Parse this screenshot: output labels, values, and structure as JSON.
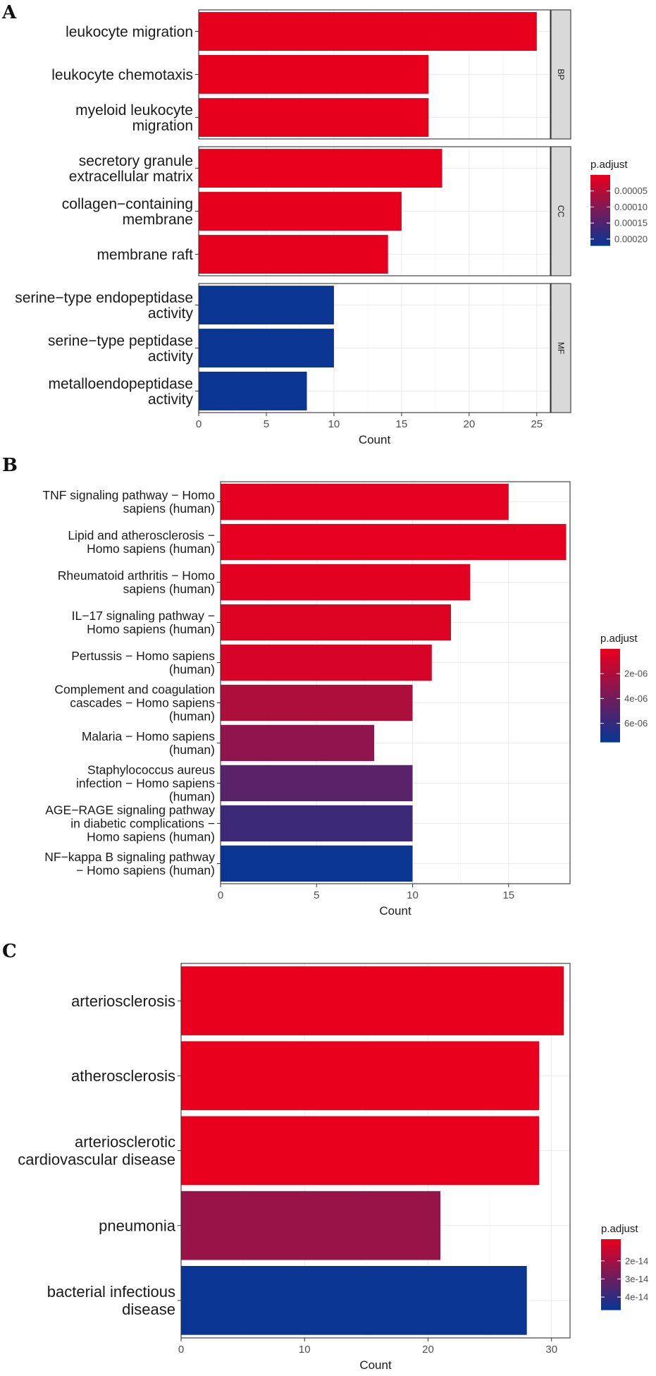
{
  "colors": {
    "high": "#e8001d",
    "low": "#0a3592",
    "grid": "#ebebeb",
    "frame": "#333333",
    "strip": "#d9d9d9"
  },
  "chart_data": [
    {
      "type": "bar",
      "panel": "A",
      "orientation": "horizontal",
      "xlabel": "Count",
      "xlim": [
        0,
        26
      ],
      "xticks": [
        "0",
        "5",
        "10",
        "15",
        "20",
        "25"
      ],
      "facets": [
        {
          "name": "BP",
          "categories": [
            "leukocyte migration",
            "leukocyte chemotaxis",
            "myeloid leukocyte\nmigration"
          ],
          "values": [
            25,
            17,
            17
          ],
          "p_adjust": [
            5e-07,
            6e-07,
            6e-07
          ]
        },
        {
          "name": "CC",
          "categories": [
            "secretory granule\nextracellular matrix",
            "collagen-containing\nmembrane",
            "membrane raft"
          ],
          "values": [
            18,
            15,
            14
          ],
          "p_adjust": [
            4e-07,
            6e-07,
            8e-07
          ]
        },
        {
          "name": "MF",
          "categories": [
            "serine-type endopeptidase\nactivity",
            "serine-type peptidase\nactivity",
            "metalloendopeptidase\nactivity"
          ],
          "values": [
            10,
            10,
            8
          ],
          "p_adjust": [
            0.00022,
            0.00022,
            0.00022
          ]
        }
      ],
      "legend": {
        "title": "p.adjust",
        "ticks": [
          "0.00005",
          "0.00010",
          "0.00015",
          "0.00020"
        ],
        "tick_values": [
          5e-05,
          0.0001,
          0.00015,
          0.0002
        ],
        "min": 0,
        "max": 0.00022
      }
    },
    {
      "type": "bar",
      "panel": "B",
      "orientation": "horizontal",
      "xlabel": "Count",
      "xlim": [
        0,
        18.2
      ],
      "xticks": [
        "0",
        "5",
        "10",
        "15"
      ],
      "categories": [
        "TNF signaling pathway - Homo\nsapiens (human)",
        "Lipid and atherosclerosis -\nHomo sapiens (human)",
        "Rheumatoid arthritis - Homo\nsapiens (human)",
        "IL-17 signaling pathway -\nHomo sapiens (human)",
        "Pertussis - Homo sapiens\n(human)",
        "Complement and coagulation\ncascades - Homo sapiens\n(human)",
        "Malaria - Homo sapiens\n(human)",
        "Staphylococcus aureus\ninfection - Homo sapiens\n(human)",
        "AGE-RAGE signaling pathway\nin diabetic complications -\nHomo sapiens (human)",
        "NF-kappa B signaling pathway\n- Homo sapiens (human)"
      ],
      "values": [
        15,
        18,
        13,
        12,
        11,
        10,
        8,
        10,
        10,
        10
      ],
      "p_adjust": [
        1e-07,
        1e-07,
        2e-07,
        4e-07,
        6e-07,
        2e-06,
        3e-06,
        4.8e-06,
        5.8e-06,
        7.5e-06
      ],
      "legend": {
        "title": "p.adjust",
        "ticks": [
          "2e-06",
          "4e-06",
          "6e-06"
        ],
        "tick_values": [
          2e-06,
          4e-06,
          6e-06
        ],
        "min": 0,
        "max": 7.5e-06
      }
    },
    {
      "type": "bar",
      "panel": "C",
      "orientation": "horizontal",
      "xlabel": "Count",
      "xlim": [
        0,
        31.5
      ],
      "xticks": [
        "0",
        "10",
        "20",
        "30"
      ],
      "categories": [
        "arteriosclerosis",
        "atherosclerosis",
        "arteriosclerotic\ncardiovascular disease",
        "pneumonia",
        "bacterial infectious\ndisease"
      ],
      "values": [
        31,
        29,
        29,
        21,
        28
      ],
      "p_adjust": [
        1e-16,
        1e-16,
        1e-16,
        2.2e-14,
        4.7e-14
      ],
      "legend": {
        "title": "p.adjust",
        "ticks": [
          "2e-14",
          "3e-14",
          "4e-14"
        ],
        "tick_values": [
          2e-14,
          3e-14,
          4e-14
        ],
        "min": 8e-15,
        "max": 4.7e-14
      }
    }
  ]
}
